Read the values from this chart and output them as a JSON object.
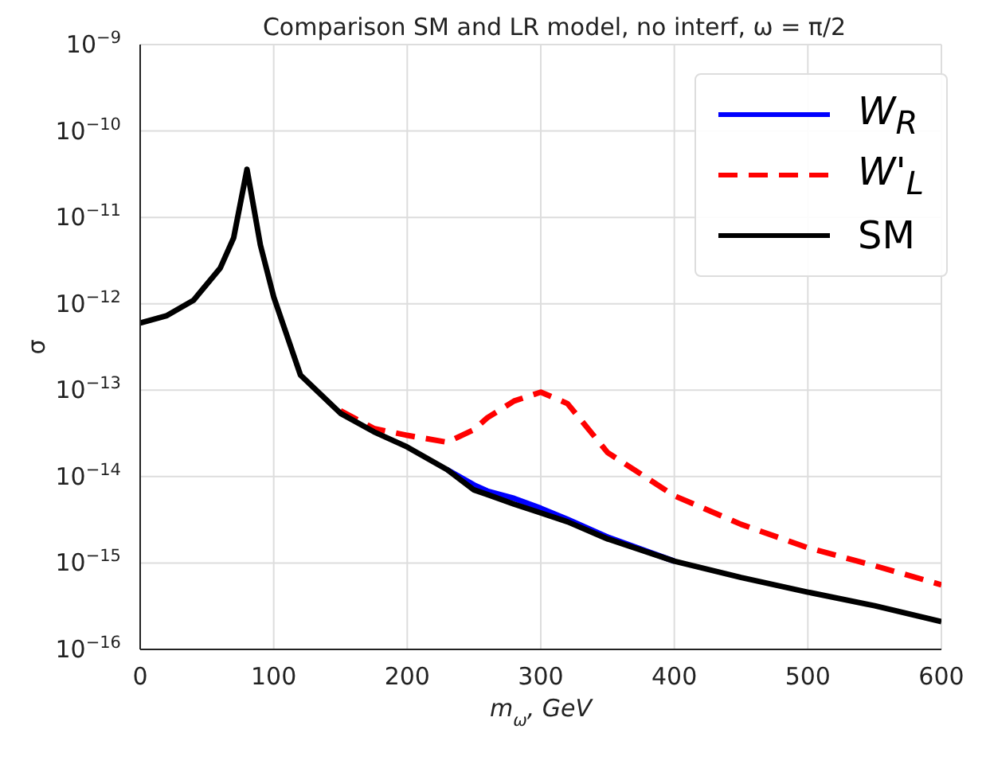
{
  "chart_data": {
    "type": "line",
    "title": "Comparison SM and LR model, no interf, ω = π/2",
    "xlabel": "m$_{ω}$, GeV",
    "ylabel": "σ",
    "x": [
      0,
      20,
      40,
      60,
      70,
      80,
      90,
      100,
      120,
      150,
      175,
      200,
      230,
      250,
      260,
      280,
      300,
      320,
      350,
      400,
      450,
      500,
      550,
      600
    ],
    "series": [
      {
        "name": "W$_{R}$",
        "color": "#0000ff",
        "values": [
          null,
          null,
          null,
          null,
          null,
          null,
          null,
          null,
          null,
          null,
          null,
          null,
          1.2e-14,
          8e-15,
          6.8e-15,
          5.6e-15,
          4.3e-15,
          3.2e-15,
          2e-15,
          1.05e-15,
          null,
          null,
          null,
          null
        ]
      },
      {
        "name": "W'$_{L}$",
        "color": "#ff0000",
        "line_style": "dashed",
        "values": [
          null,
          null,
          null,
          null,
          null,
          null,
          null,
          null,
          null,
          5.8e-14,
          3.6e-14,
          3e-14,
          2.5e-14,
          3.5e-14,
          4.8e-14,
          7.5e-14,
          9.5e-14,
          7e-14,
          1.9e-14,
          6e-15,
          2.8e-15,
          1.5e-15,
          9.3e-16,
          5.6e-16
        ]
      },
      {
        "name": "SM",
        "color": "#000000",
        "values": [
          6e-13,
          7.3e-13,
          1.1e-12,
          2.6e-12,
          5.8e-12,
          3.6e-11,
          4.8e-12,
          1.2e-12,
          1.5e-13,
          5.4e-14,
          3.3e-14,
          2.2e-14,
          1.2e-14,
          7e-15,
          6.2e-15,
          4.8e-15,
          3.8e-15,
          3e-15,
          1.9e-15,
          1.05e-15,
          6.8e-16,
          4.6e-16,
          3.2e-16,
          2.1e-16
        ]
      }
    ],
    "xlim": [
      0,
      600
    ],
    "xticks": [
      0,
      100,
      200,
      300,
      400,
      500,
      600
    ],
    "ylim": [
      1e-16,
      1e-09
    ],
    "yticks": [
      {
        "value": 1e-16,
        "label": "10$^{−16}$"
      },
      {
        "value": 1e-15,
        "label": "10$^{−15}$"
      },
      {
        "value": 1e-14,
        "label": "10$^{−14}$"
      },
      {
        "value": 1e-13,
        "label": "10$^{−13}$"
      },
      {
        "value": 1e-12,
        "label": "10$^{−12}$"
      },
      {
        "value": 1e-11,
        "label": "10$^{−11}$"
      },
      {
        "value": 1e-10,
        "label": "10$^{−10}$"
      },
      {
        "value": 1e-09,
        "label": "10$^{−9}$"
      }
    ],
    "log": "y",
    "grid": true,
    "legend": "top right"
  }
}
